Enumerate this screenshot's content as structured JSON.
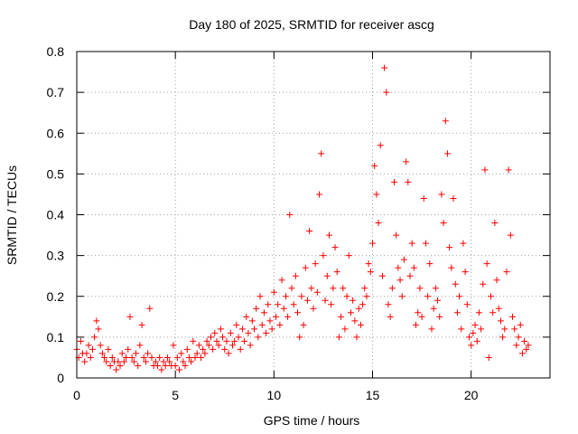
{
  "chart_data": {
    "type": "scatter",
    "title": "Day 180 of 2025, SRMTID for receiver ascg",
    "xlabel": "GPS time / hours",
    "ylabel": "SRMTID / TECUs",
    "xlim": [
      0,
      24
    ],
    "ylim": [
      0,
      0.8
    ],
    "xticks": [
      0,
      5,
      10,
      15,
      20
    ],
    "xtick_labels": [
      "0",
      "5",
      "10",
      "15",
      "20"
    ],
    "yticks": [
      0,
      0.1,
      0.2,
      0.3,
      0.4,
      0.5,
      0.6,
      0.7,
      0.8
    ],
    "ytick_labels": [
      "0",
      "0.1",
      "0.2",
      "0.3",
      "0.4",
      "0.5",
      "0.6",
      "0.7",
      "0.8"
    ],
    "grid": true,
    "marker": "+",
    "color": "#ff0000",
    "series": [
      {
        "name": "SRMTID",
        "points": [
          [
            0.0,
            0.07
          ],
          [
            0.1,
            0.05
          ],
          [
            0.2,
            0.09
          ],
          [
            0.3,
            0.06
          ],
          [
            0.4,
            0.04
          ],
          [
            0.5,
            0.06
          ],
          [
            0.6,
            0.08
          ],
          [
            0.7,
            0.05
          ],
          [
            0.8,
            0.07
          ],
          [
            0.9,
            0.1
          ],
          [
            1.0,
            0.14
          ],
          [
            1.1,
            0.12
          ],
          [
            1.2,
            0.08
          ],
          [
            1.3,
            0.06
          ],
          [
            1.4,
            0.05
          ],
          [
            1.5,
            0.04
          ],
          [
            1.6,
            0.07
          ],
          [
            1.7,
            0.03
          ],
          [
            1.8,
            0.05
          ],
          [
            1.9,
            0.04
          ],
          [
            2.0,
            0.02
          ],
          [
            2.1,
            0.04
          ],
          [
            2.2,
            0.03
          ],
          [
            2.3,
            0.06
          ],
          [
            2.4,
            0.04
          ],
          [
            2.5,
            0.05
          ],
          [
            2.6,
            0.07
          ],
          [
            2.7,
            0.15
          ],
          [
            2.8,
            0.05
          ],
          [
            2.9,
            0.04
          ],
          [
            3.0,
            0.06
          ],
          [
            3.1,
            0.03
          ],
          [
            3.2,
            0.08
          ],
          [
            3.3,
            0.13
          ],
          [
            3.4,
            0.05
          ],
          [
            3.5,
            0.04
          ],
          [
            3.6,
            0.06
          ],
          [
            3.7,
            0.17
          ],
          [
            3.8,
            0.05
          ],
          [
            3.9,
            0.03
          ],
          [
            4.0,
            0.04
          ],
          [
            4.1,
            0.03
          ],
          [
            4.2,
            0.05
          ],
          [
            4.3,
            0.02
          ],
          [
            4.4,
            0.04
          ],
          [
            4.5,
            0.03
          ],
          [
            4.6,
            0.05
          ],
          [
            4.7,
            0.04
          ],
          [
            4.8,
            0.03
          ],
          [
            4.9,
            0.08
          ],
          [
            5.0,
            0.03
          ],
          [
            5.1,
            0.05
          ],
          [
            5.2,
            0.02
          ],
          [
            5.3,
            0.06
          ],
          [
            5.4,
            0.04
          ],
          [
            5.5,
            0.03
          ],
          [
            5.6,
            0.07
          ],
          [
            5.7,
            0.05
          ],
          [
            5.8,
            0.04
          ],
          [
            5.9,
            0.09
          ],
          [
            6.0,
            0.05
          ],
          [
            6.1,
            0.06
          ],
          [
            6.2,
            0.08
          ],
          [
            6.3,
            0.05
          ],
          [
            6.4,
            0.07
          ],
          [
            6.5,
            0.06
          ],
          [
            6.6,
            0.09
          ],
          [
            6.7,
            0.08
          ],
          [
            6.8,
            0.1
          ],
          [
            6.9,
            0.07
          ],
          [
            7.0,
            0.11
          ],
          [
            7.1,
            0.09
          ],
          [
            7.2,
            0.08
          ],
          [
            7.3,
            0.12
          ],
          [
            7.4,
            0.1
          ],
          [
            7.5,
            0.07
          ],
          [
            7.6,
            0.09
          ],
          [
            7.7,
            0.06
          ],
          [
            7.8,
            0.11
          ],
          [
            7.9,
            0.08
          ],
          [
            8.0,
            0.09
          ],
          [
            8.1,
            0.13
          ],
          [
            8.2,
            0.1
          ],
          [
            8.3,
            0.07
          ],
          [
            8.4,
            0.12
          ],
          [
            8.5,
            0.09
          ],
          [
            8.6,
            0.15
          ],
          [
            8.7,
            0.11
          ],
          [
            8.8,
            0.08
          ],
          [
            8.9,
            0.14
          ],
          [
            9.0,
            0.12
          ],
          [
            9.1,
            0.17
          ],
          [
            9.2,
            0.1
          ],
          [
            9.3,
            0.2
          ],
          [
            9.4,
            0.13
          ],
          [
            9.5,
            0.16
          ],
          [
            9.6,
            0.11
          ],
          [
            9.7,
            0.18
          ],
          [
            9.8,
            0.14
          ],
          [
            9.9,
            0.12
          ],
          [
            10.0,
            0.21
          ],
          [
            10.1,
            0.15
          ],
          [
            10.2,
            0.18
          ],
          [
            10.3,
            0.13
          ],
          [
            10.4,
            0.24
          ],
          [
            10.5,
            0.17
          ],
          [
            10.6,
            0.2
          ],
          [
            10.7,
            0.15
          ],
          [
            10.8,
            0.4
          ],
          [
            10.9,
            0.22
          ],
          [
            11.0,
            0.18
          ],
          [
            11.1,
            0.25
          ],
          [
            11.2,
            0.16
          ],
          [
            11.3,
            0.1
          ],
          [
            11.4,
            0.2
          ],
          [
            11.5,
            0.13
          ],
          [
            11.6,
            0.27
          ],
          [
            11.7,
            0.19
          ],
          [
            11.8,
            0.36
          ],
          [
            11.9,
            0.22
          ],
          [
            12.0,
            0.17
          ],
          [
            12.1,
            0.28
          ],
          [
            12.2,
            0.21
          ],
          [
            12.3,
            0.45
          ],
          [
            12.4,
            0.55
          ],
          [
            12.5,
            0.3
          ],
          [
            12.6,
            0.19
          ],
          [
            12.7,
            0.25
          ],
          [
            12.8,
            0.35
          ],
          [
            12.9,
            0.18
          ],
          [
            13.0,
            0.22
          ],
          [
            13.1,
            0.32
          ],
          [
            13.2,
            0.26
          ],
          [
            13.3,
            0.1
          ],
          [
            13.4,
            0.15
          ],
          [
            13.5,
            0.22
          ],
          [
            13.6,
            0.12
          ],
          [
            13.7,
            0.2
          ],
          [
            13.8,
            0.3
          ],
          [
            13.9,
            0.16
          ],
          [
            14.0,
            0.19
          ],
          [
            14.1,
            0.14
          ],
          [
            14.2,
            0.1
          ],
          [
            14.3,
            0.17
          ],
          [
            14.4,
            0.13
          ],
          [
            14.5,
            0.18
          ],
          [
            14.6,
            0.22
          ],
          [
            14.7,
            0.2
          ],
          [
            14.8,
            0.28
          ],
          [
            14.9,
            0.26
          ],
          [
            15.0,
            0.33
          ],
          [
            15.1,
            0.52
          ],
          [
            15.2,
            0.45
          ],
          [
            15.3,
            0.38
          ],
          [
            15.4,
            0.57
          ],
          [
            15.5,
            0.25
          ],
          [
            15.6,
            0.76
          ],
          [
            15.7,
            0.7
          ],
          [
            15.8,
            0.18
          ],
          [
            15.9,
            0.15
          ],
          [
            16.0,
            0.22
          ],
          [
            16.1,
            0.48
          ],
          [
            16.2,
            0.35
          ],
          [
            16.3,
            0.27
          ],
          [
            16.4,
            0.24
          ],
          [
            16.5,
            0.2
          ],
          [
            16.6,
            0.29
          ],
          [
            16.7,
            0.53
          ],
          [
            16.8,
            0.48
          ],
          [
            16.9,
            0.25
          ],
          [
            17.0,
            0.33
          ],
          [
            17.1,
            0.27
          ],
          [
            17.2,
            0.13
          ],
          [
            17.3,
            0.16
          ],
          [
            17.4,
            0.22
          ],
          [
            17.5,
            0.15
          ],
          [
            17.6,
            0.44
          ],
          [
            17.7,
            0.33
          ],
          [
            17.8,
            0.2
          ],
          [
            17.9,
            0.28
          ],
          [
            18.0,
            0.12
          ],
          [
            18.1,
            0.17
          ],
          [
            18.2,
            0.22
          ],
          [
            18.3,
            0.19
          ],
          [
            18.4,
            0.15
          ],
          [
            18.5,
            0.45
          ],
          [
            18.6,
            0.38
          ],
          [
            18.7,
            0.63
          ],
          [
            18.8,
            0.55
          ],
          [
            18.9,
            0.32
          ],
          [
            19.0,
            0.27
          ],
          [
            19.1,
            0.44
          ],
          [
            19.2,
            0.23
          ],
          [
            19.3,
            0.16
          ],
          [
            19.4,
            0.2
          ],
          [
            19.5,
            0.12
          ],
          [
            19.6,
            0.33
          ],
          [
            19.7,
            0.26
          ],
          [
            19.8,
            0.18
          ],
          [
            19.9,
            0.1
          ],
          [
            20.0,
            0.08
          ],
          [
            20.1,
            0.11
          ],
          [
            20.2,
            0.13
          ],
          [
            20.3,
            0.09
          ],
          [
            20.4,
            0.16
          ],
          [
            20.5,
            0.12
          ],
          [
            20.6,
            0.23
          ],
          [
            20.7,
            0.51
          ],
          [
            20.8,
            0.28
          ],
          [
            20.9,
            0.05
          ],
          [
            21.0,
            0.2
          ],
          [
            21.1,
            0.16
          ],
          [
            21.2,
            0.38
          ],
          [
            21.3,
            0.24
          ],
          [
            21.4,
            0.17
          ],
          [
            21.5,
            0.14
          ],
          [
            21.6,
            0.1
          ],
          [
            21.7,
            0.12
          ],
          [
            21.8,
            0.26
          ],
          [
            21.9,
            0.51
          ],
          [
            22.0,
            0.35
          ],
          [
            22.1,
            0.15
          ],
          [
            22.2,
            0.12
          ],
          [
            22.3,
            0.08
          ],
          [
            22.4,
            0.1
          ],
          [
            22.5,
            0.13
          ],
          [
            22.6,
            0.06
          ],
          [
            22.7,
            0.09
          ],
          [
            22.8,
            0.07
          ],
          [
            22.9,
            0.08
          ]
        ]
      }
    ]
  }
}
